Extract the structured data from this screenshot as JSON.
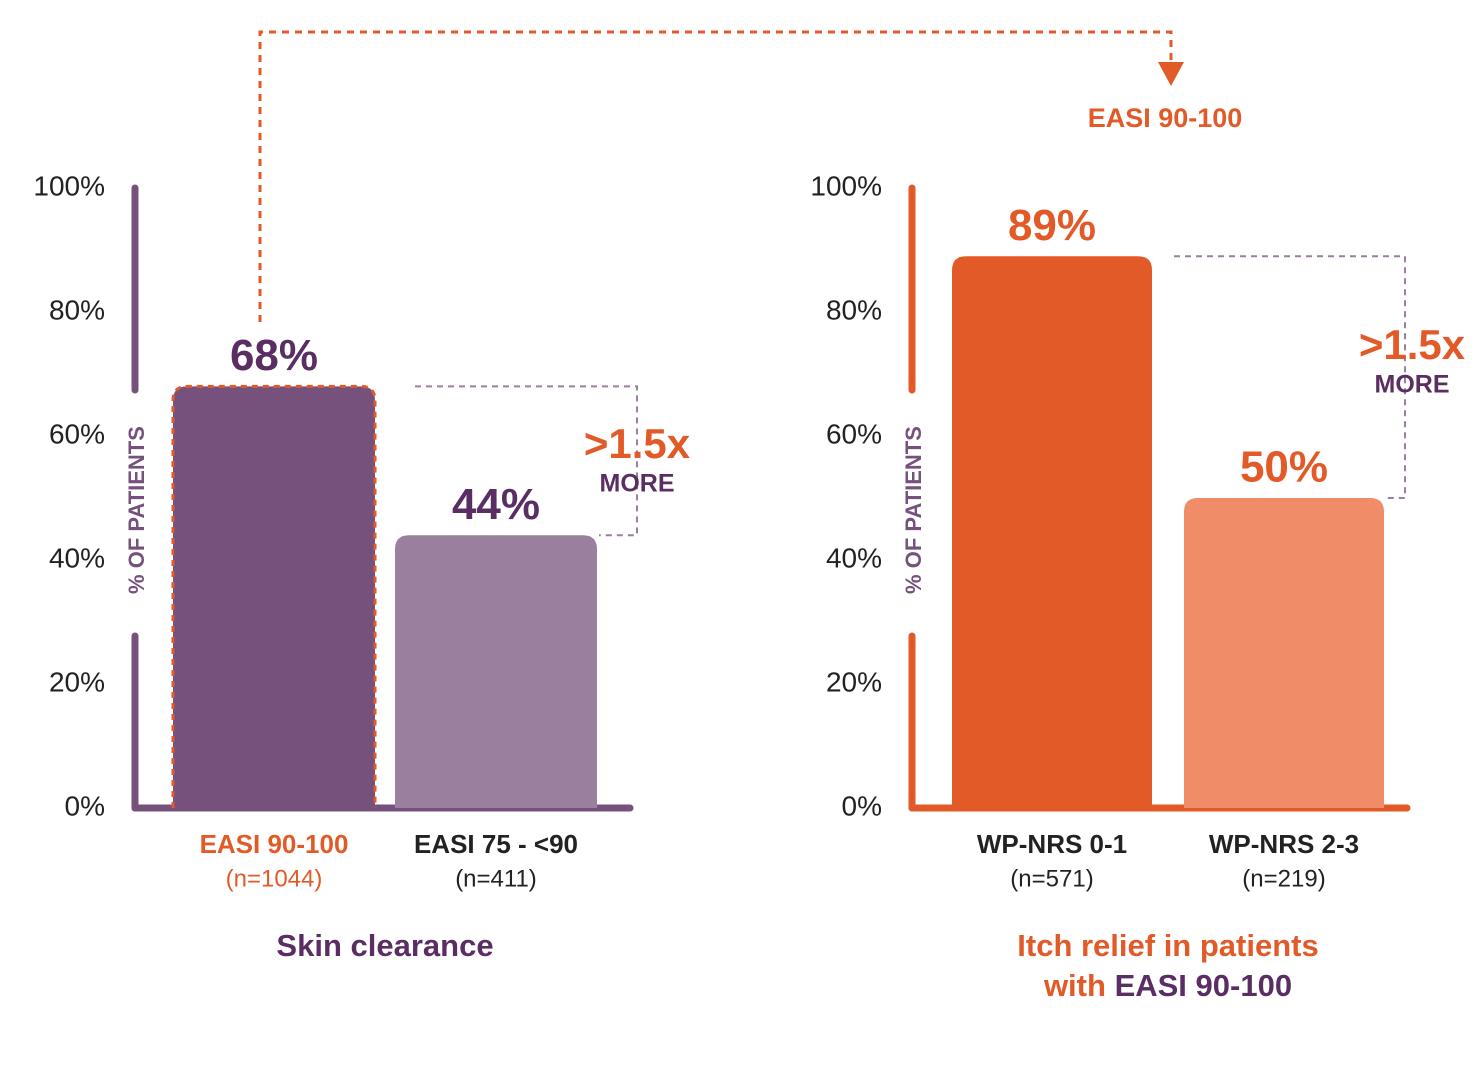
{
  "connector_label": "EASI 90-100",
  "chart_data": [
    {
      "type": "bar",
      "title": "Skin clearance",
      "ylabel": "% OF PATIENTS",
      "axis_color": "#76517c",
      "title_color": "#5a2d63",
      "categories": [
        "EASI 90-100",
        "EASI 75 - <90"
      ],
      "sample_sizes": [
        "(n=1044)",
        "(n=411)"
      ],
      "category_label_colors": [
        "#e25a27",
        "#222222"
      ],
      "values": [
        68,
        44
      ],
      "value_labels": [
        "68%",
        "44%"
      ],
      "colors": [
        "#76517c",
        "#9a7f9e"
      ],
      "value_label_color": "#5a2d63",
      "highlight": 0,
      "ylim": [
        0,
        100
      ],
      "yticks": [
        {
          "value": 0,
          "label": "0%"
        },
        {
          "value": 20,
          "label": "20%"
        },
        {
          "value": 40,
          "label": "40%"
        },
        {
          "value": 60,
          "label": "60%"
        },
        {
          "value": 80,
          "label": "80%"
        },
        {
          "value": 100,
          "label": "100%"
        }
      ],
      "annotation": ">1.5x",
      "annotation_sub": "MORE"
    },
    {
      "type": "bar",
      "title": "Itch relief in patients",
      "title_line2": "with",
      "title_highlight": "EASI 90-100",
      "ylabel": "% OF PATIENTS",
      "axis_color": "#e25a27",
      "title_color": "#e25a27",
      "categories": [
        "WP-NRS 0-1",
        "WP-NRS 2-3"
      ],
      "sample_sizes": [
        "(n=571)",
        "(n=219)"
      ],
      "category_label_colors": [
        "#222222",
        "#222222"
      ],
      "values": [
        89,
        50
      ],
      "value_labels": [
        "89%",
        "50%"
      ],
      "colors": [
        "#e25a27",
        "#f08c68"
      ],
      "value_label_color": "#e25a27",
      "ylim": [
        0,
        100
      ],
      "yticks": [
        {
          "value": 0,
          "label": "0%"
        },
        {
          "value": 20,
          "label": "20%"
        },
        {
          "value": 40,
          "label": "40%"
        },
        {
          "value": 60,
          "label": "60%"
        },
        {
          "value": 80,
          "label": "80%"
        },
        {
          "value": 100,
          "label": "100%"
        }
      ],
      "annotation": ">1.5x",
      "annotation_sub": "MORE"
    }
  ]
}
